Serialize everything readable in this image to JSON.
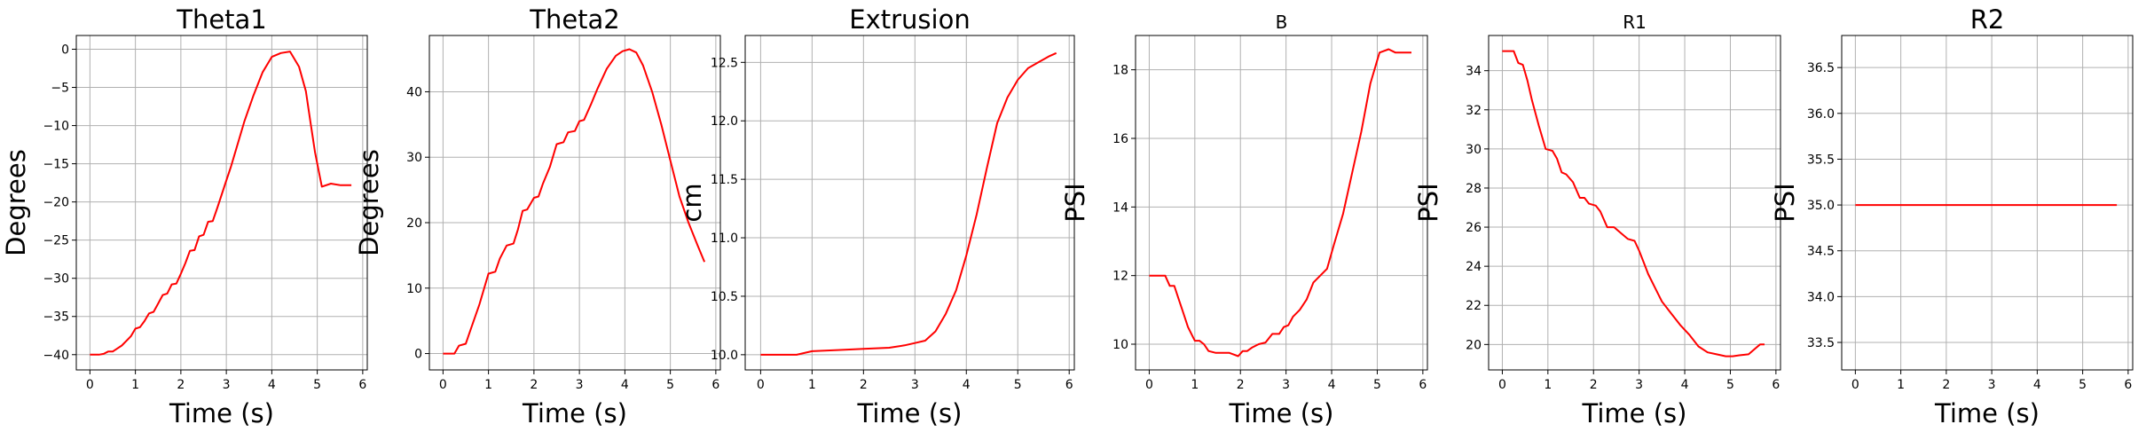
{
  "figure": {
    "line_color": "#ff0000",
    "grid_color": "#b0b0b0",
    "axes_color": "#000000"
  },
  "chart_data": [
    {
      "type": "line",
      "title": "Theta1",
      "xlabel": "Time (s)",
      "ylabel": "Degrees",
      "xlim": [
        -0.3,
        6.1
      ],
      "ylim": [
        -42.0,
        1.8
      ],
      "xticks": [
        0,
        1,
        2,
        3,
        4,
        5,
        6
      ],
      "yticks": [
        -40,
        -35,
        -30,
        -25,
        -20,
        -15,
        -10,
        -5,
        0
      ],
      "grid": true,
      "series": [
        {
          "x": [
            0,
            0.2,
            0.3,
            0.4,
            0.5,
            0.6,
            0.7,
            0.8,
            0.9,
            1.0,
            1.1,
            1.2,
            1.3,
            1.4,
            1.5,
            1.6,
            1.7,
            1.8,
            1.9,
            2.0,
            2.1,
            2.2,
            2.3,
            2.4,
            2.5,
            2.6,
            2.7,
            2.8,
            2.9,
            3.0,
            3.1,
            3.2,
            3.3,
            3.4,
            3.6,
            3.8,
            4.0,
            4.2,
            4.4,
            4.6,
            4.75,
            4.85,
            4.95,
            5.1,
            5.3,
            5.5,
            5.75
          ],
          "y": [
            -40,
            -40,
            -39.9,
            -39.6,
            -39.6,
            -39.2,
            -38.8,
            -38.2,
            -37.6,
            -36.6,
            -36.4,
            -35.6,
            -34.6,
            -34.4,
            -33.3,
            -32.2,
            -32.0,
            -30.8,
            -30.7,
            -29.4,
            -28.0,
            -26.4,
            -26.3,
            -24.5,
            -24.3,
            -22.6,
            -22.5,
            -20.8,
            -19.0,
            -17.2,
            -15.4,
            -13.4,
            -11.4,
            -9.4,
            -6.0,
            -3.0,
            -1.0,
            -0.5,
            -0.3,
            -2.3,
            -5.5,
            -9.5,
            -13.5,
            -18.0,
            -17.6,
            -17.8,
            -17.8
          ]
        }
      ]
    },
    {
      "type": "line",
      "title": "Theta2",
      "xlabel": "Time (s)",
      "ylabel": "Degrees",
      "xlim": [
        -0.3,
        6.1
      ],
      "ylim": [
        -2.5,
        48.6
      ],
      "xticks": [
        0,
        1,
        2,
        3,
        4,
        5,
        6
      ],
      "yticks": [
        0,
        10,
        20,
        30,
        40
      ],
      "grid": true,
      "series": [
        {
          "x": [
            0,
            0.25,
            0.35,
            0.5,
            0.6,
            0.8,
            1.0,
            1.15,
            1.25,
            1.4,
            1.55,
            1.65,
            1.75,
            1.85,
            2.0,
            2.1,
            2.2,
            2.35,
            2.5,
            2.65,
            2.75,
            2.9,
            3.0,
            3.1,
            3.25,
            3.4,
            3.6,
            3.8,
            3.95,
            4.1,
            4.25,
            4.4,
            4.6,
            4.8,
            5.0,
            5.2,
            5.4,
            5.6,
            5.75
          ],
          "y": [
            0,
            0,
            1.2,
            1.5,
            3.5,
            7.5,
            12.2,
            12.5,
            14.5,
            16.5,
            16.8,
            19.0,
            21.8,
            22.0,
            23.8,
            24.0,
            26.0,
            28.5,
            32.0,
            32.3,
            33.8,
            34.0,
            35.5,
            35.7,
            38.0,
            40.5,
            43.5,
            45.5,
            46.2,
            46.5,
            46.0,
            44.0,
            40.0,
            35.0,
            29.5,
            24.0,
            20.0,
            16.5,
            14.0
          ]
        }
      ]
    },
    {
      "type": "line",
      "title": "Extrusion",
      "xlabel": "Time (s)",
      "ylabel": "cm",
      "xlim": [
        -0.3,
        6.1
      ],
      "ylim": [
        9.87,
        12.73
      ],
      "xticks": [
        0,
        1,
        2,
        3,
        4,
        5,
        6
      ],
      "yticks": [
        10.0,
        10.5,
        11.0,
        11.5,
        12.0,
        12.5
      ],
      "ytick_labels": [
        "10.0",
        "10.5",
        "11.0",
        "11.5",
        "12.0",
        "12.5"
      ],
      "grid": true,
      "series": [
        {
          "x": [
            0,
            0.7,
            1.0,
            1.5,
            2.0,
            2.5,
            2.8,
            3.0,
            3.2,
            3.4,
            3.6,
            3.8,
            4.0,
            4.2,
            4.4,
            4.6,
            4.8,
            5.0,
            5.2,
            5.4,
            5.6,
            5.75
          ],
          "y": [
            10.0,
            10.0,
            10.03,
            10.04,
            10.05,
            10.06,
            10.08,
            10.1,
            10.12,
            10.2,
            10.35,
            10.55,
            10.85,
            11.2,
            11.6,
            11.98,
            12.2,
            12.35,
            12.45,
            12.5,
            12.55,
            12.58
          ]
        }
      ]
    },
    {
      "type": "line",
      "title": "B",
      "xlabel": "Time (s)",
      "ylabel": "PSI",
      "xlim": [
        -0.3,
        6.1
      ],
      "ylim": [
        9.25,
        19.0
      ],
      "xticks": [
        0,
        1,
        2,
        3,
        4,
        5,
        6
      ],
      "yticks": [
        10,
        12,
        14,
        16,
        18
      ],
      "grid": true,
      "series": [
        {
          "x": [
            0,
            0.25,
            0.35,
            0.45,
            0.55,
            0.65,
            0.75,
            0.85,
            1.0,
            1.1,
            1.2,
            1.3,
            1.45,
            1.6,
            1.75,
            1.85,
            1.95,
            2.05,
            2.15,
            2.25,
            2.4,
            2.55,
            2.7,
            2.85,
            2.95,
            3.05,
            3.15,
            3.3,
            3.45,
            3.6,
            3.75,
            3.9,
            4.05,
            4.25,
            4.45,
            4.65,
            4.85,
            5.05,
            5.25,
            5.4,
            5.55,
            5.65,
            5.75
          ],
          "y": [
            12.0,
            12.0,
            12.0,
            11.7,
            11.7,
            11.3,
            10.9,
            10.5,
            10.1,
            10.1,
            10.0,
            9.8,
            9.75,
            9.75,
            9.75,
            9.7,
            9.65,
            9.8,
            9.8,
            9.9,
            10.0,
            10.05,
            10.3,
            10.3,
            10.5,
            10.55,
            10.8,
            11.0,
            11.3,
            11.8,
            12.0,
            12.2,
            12.9,
            13.8,
            15.0,
            16.2,
            17.6,
            18.5,
            18.6,
            18.5,
            18.5,
            18.5,
            18.5
          ]
        }
      ]
    },
    {
      "type": "line",
      "title": "R1",
      "xlabel": "Time (s)",
      "ylabel": "PSI",
      "xlim": [
        -0.3,
        6.1
      ],
      "ylim": [
        18.7,
        35.8
      ],
      "xticks": [
        0,
        1,
        2,
        3,
        4,
        5,
        6
      ],
      "yticks": [
        20,
        22,
        24,
        26,
        28,
        30,
        32,
        34
      ],
      "grid": true,
      "series": [
        {
          "x": [
            0,
            0.25,
            0.35,
            0.45,
            0.55,
            0.65,
            0.8,
            0.95,
            1.1,
            1.2,
            1.3,
            1.4,
            1.55,
            1.7,
            1.8,
            1.9,
            2.05,
            2.15,
            2.3,
            2.45,
            2.6,
            2.75,
            2.9,
            3.0,
            3.1,
            3.2,
            3.35,
            3.5,
            3.7,
            3.9,
            4.1,
            4.3,
            4.5,
            4.7,
            4.9,
            5.05,
            5.2,
            5.4,
            5.55,
            5.65,
            5.75
          ],
          "y": [
            35.0,
            35.0,
            34.4,
            34.3,
            33.5,
            32.5,
            31.2,
            30.0,
            29.9,
            29.5,
            28.8,
            28.7,
            28.3,
            27.5,
            27.5,
            27.2,
            27.1,
            26.8,
            26.0,
            26.0,
            25.7,
            25.4,
            25.3,
            24.8,
            24.2,
            23.6,
            22.9,
            22.2,
            21.6,
            21.0,
            20.5,
            19.9,
            19.6,
            19.5,
            19.4,
            19.4,
            19.45,
            19.5,
            19.8,
            20.0,
            20.0
          ]
        }
      ]
    },
    {
      "type": "line",
      "title": "R2",
      "xlabel": "Time (s)",
      "ylabel": "PSI",
      "xlim": [
        -0.3,
        6.1
      ],
      "ylim": [
        33.2,
        36.85
      ],
      "xticks": [
        0,
        1,
        2,
        3,
        4,
        5,
        6
      ],
      "yticks": [
        33.5,
        34.0,
        34.5,
        35.0,
        35.5,
        36.0,
        36.5
      ],
      "ytick_labels": [
        "33.5",
        "34.0",
        "34.5",
        "35.0",
        "35.5",
        "36.0",
        "36.5"
      ],
      "grid": true,
      "series": [
        {
          "x": [
            0,
            5.75
          ],
          "y": [
            35.0,
            35.0
          ]
        }
      ]
    }
  ]
}
